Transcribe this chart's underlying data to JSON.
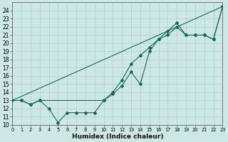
{
  "xlabel": "Humidex (Indice chaleur)",
  "bg_color": "#cce8e5",
  "grid_color": "#b0d4d0",
  "line_color": "#1a6b5a",
  "ylim": [
    10,
    25
  ],
  "xlim": [
    0,
    23
  ],
  "series1_x": [
    0,
    1,
    2,
    3,
    4,
    5,
    6,
    7,
    8,
    9,
    10,
    11,
    12,
    13,
    14,
    15,
    16,
    17,
    18,
    19,
    20,
    21,
    22,
    23
  ],
  "series1_y": [
    13,
    13,
    12.5,
    13,
    12,
    10.3,
    11.5,
    11.5,
    11.5,
    11.5,
    13,
    13.8,
    14.8,
    16.5,
    15,
    19,
    20.5,
    21.5,
    22.5,
    21,
    21,
    21,
    20.5,
    24.5
  ],
  "series2_x": [
    0,
    1,
    2,
    3,
    10,
    11,
    12,
    13,
    14,
    15,
    16,
    17,
    18,
    19,
    20,
    21,
    22,
    23
  ],
  "series2_y": [
    13,
    13,
    12.5,
    13,
    13,
    14,
    15.5,
    17.5,
    18.5,
    19.5,
    20.5,
    21,
    22,
    21,
    21,
    21,
    20.5,
    24.5
  ],
  "series3_x": [
    0,
    23
  ],
  "series3_y": [
    13,
    24.5
  ]
}
